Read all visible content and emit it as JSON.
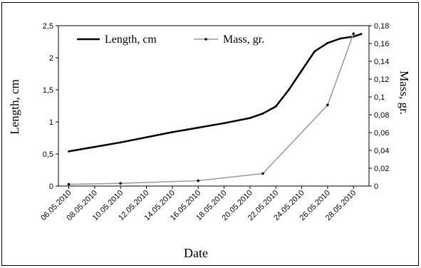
{
  "chart_data": {
    "type": "line",
    "xlabel": "Date",
    "ylabel": "Length, cm",
    "y2label": "Mass, gr.",
    "x_ticks": [
      "06.05.2010",
      "08.05.2010",
      "10.05.2010",
      "12.05.2010",
      "14.05.2010",
      "16.05.2010",
      "18.05.2010",
      "20.05.2010",
      "22.05.2010",
      "24.05.2010",
      "26.05.2010",
      "28.05.2010"
    ],
    "ylim": [
      0,
      2.5
    ],
    "y_ticks": [
      "0",
      "0,5",
      "1",
      "1,5",
      "2",
      "2,5"
    ],
    "y2lim": [
      0,
      0.18
    ],
    "y2_ticks": [
      "0",
      "0,02",
      "0,04",
      "0,06",
      "0,08",
      "0,1",
      "0,12",
      "0,14",
      "0,16",
      "0,18"
    ],
    "grid": false,
    "legend_position": "top-left",
    "series": [
      {
        "name": "Length, cm",
        "axis": "left",
        "color": "#000000",
        "x": [
          "06.05.2010",
          "08.05.2010",
          "10.05.2010",
          "12.05.2010",
          "14.05.2010",
          "16.05.2010",
          "18.05.2010",
          "20.05.2010",
          "21.05.2010",
          "22.05.2010",
          "23.05.2010",
          "24.05.2010",
          "25.05.2010",
          "26.05.2010",
          "27.05.2010",
          "28.05.2010",
          "28.05.2010"
        ],
        "values": [
          0.54,
          0.61,
          0.68,
          0.76,
          0.84,
          0.91,
          0.98,
          1.06,
          1.13,
          1.24,
          1.5,
          1.8,
          2.1,
          2.23,
          2.3,
          2.33,
          2.37
        ]
      },
      {
        "name": "Mass, gr.",
        "axis": "right",
        "color": "#999999",
        "x": [
          "06.05.2010",
          "10.05.2010",
          "16.05.2010",
          "21.05.2010",
          "26.05.2010",
          "28.05.2010"
        ],
        "values": [
          0.002,
          0.003,
          0.006,
          0.014,
          0.091,
          0.171
        ]
      }
    ]
  }
}
